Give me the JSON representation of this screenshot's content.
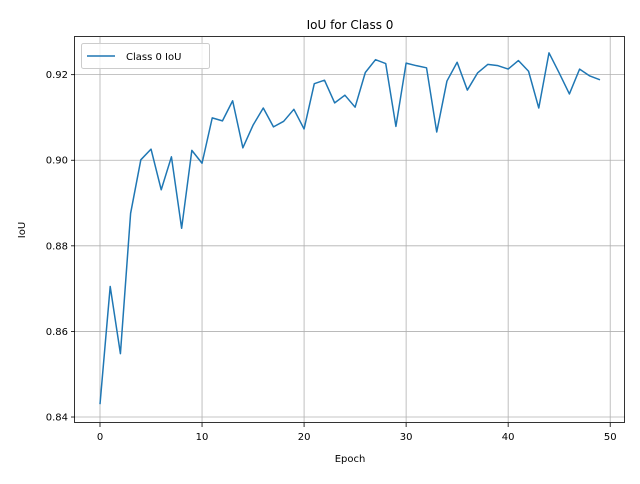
{
  "chart_data": {
    "type": "line",
    "title": "IoU for Class 0",
    "xlabel": "Epoch",
    "ylabel": "IoU",
    "xlim": [
      -2.45,
      51.45
    ],
    "ylim": [
      0.8386,
      0.9288
    ],
    "xticks": [
      0,
      10,
      20,
      30,
      40,
      50
    ],
    "yticks": [
      0.84,
      0.86,
      0.88,
      0.9,
      0.92
    ],
    "xtick_labels": [
      "0",
      "10",
      "20",
      "30",
      "40",
      "50"
    ],
    "ytick_labels": [
      "0.84",
      "0.86",
      "0.88",
      "0.90",
      "0.92"
    ],
    "grid": true,
    "legend_position": "top-left",
    "series": [
      {
        "name": "Class 0 IoU",
        "color": "#1f77b4",
        "x": [
          0,
          1,
          2,
          3,
          4,
          5,
          6,
          7,
          8,
          9,
          10,
          11,
          12,
          13,
          14,
          15,
          16,
          17,
          18,
          19,
          20,
          21,
          22,
          23,
          24,
          25,
          26,
          27,
          28,
          29,
          30,
          31,
          32,
          33,
          34,
          35,
          36,
          37,
          38,
          39,
          40,
          41,
          42,
          43,
          44,
          45,
          46,
          47,
          48,
          49
        ],
        "values": [
          0.843,
          0.8705,
          0.8548,
          0.8876,
          0.9001,
          0.9026,
          0.8931,
          0.9008,
          0.8841,
          0.9023,
          0.8993,
          0.9099,
          0.9092,
          0.9139,
          0.9029,
          0.9082,
          0.9122,
          0.9078,
          0.9091,
          0.9119,
          0.9073,
          0.9179,
          0.9187,
          0.9134,
          0.9152,
          0.9124,
          0.9205,
          0.9235,
          0.9226,
          0.9079,
          0.9227,
          0.9221,
          0.9216,
          0.9066,
          0.9185,
          0.9229,
          0.9164,
          0.9204,
          0.9224,
          0.9221,
          0.9213,
          0.9233,
          0.9208,
          0.9122,
          0.9251,
          0.9204,
          0.9155,
          0.9213,
          0.9197,
          0.9188
        ]
      }
    ]
  }
}
